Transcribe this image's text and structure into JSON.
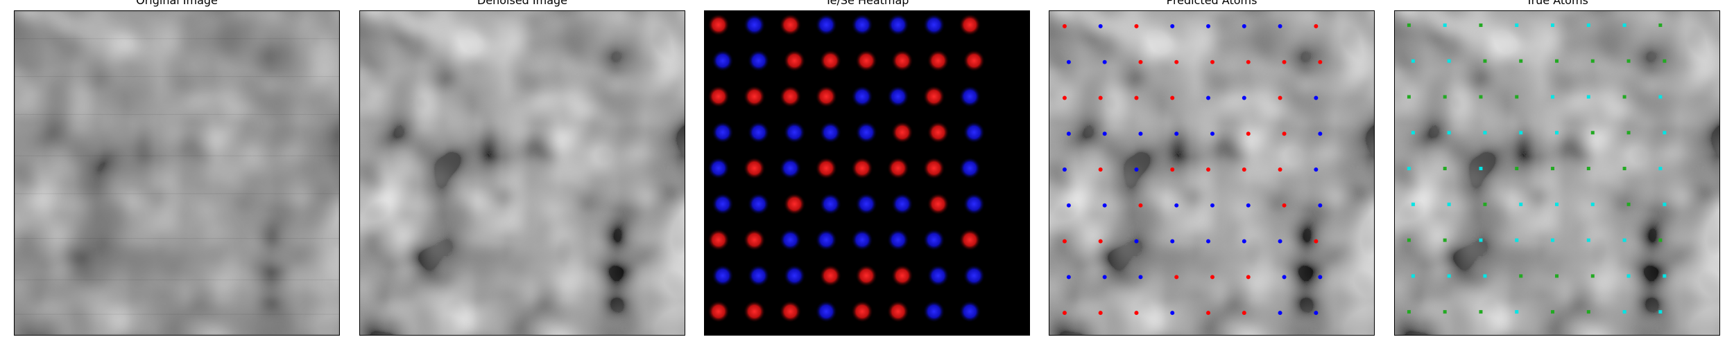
{
  "panels": [
    {
      "title": "Original Image"
    },
    {
      "title": "Denoised Image"
    },
    {
      "title": "Te/Se Heatmap"
    },
    {
      "title": "Predicted Atoms"
    },
    {
      "title": "True Atoms"
    }
  ],
  "colors": {
    "background": "#ffffff",
    "heatmap_te": "#ff2020",
    "heatmap_se": "#2020ff",
    "predicted_te": "#ff0000",
    "predicted_se": "#0000ff",
    "true_green": "#22aa22",
    "true_cyan": "#00e5e5"
  }
}
